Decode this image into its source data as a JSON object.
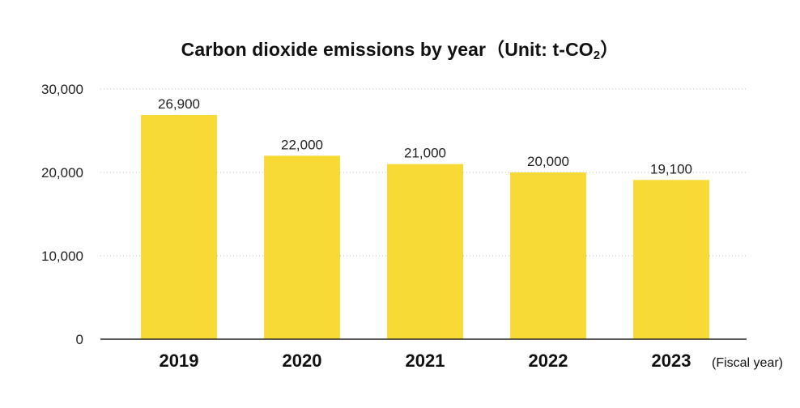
{
  "chart_data": {
    "type": "bar",
    "title_main": "Carbon dioxide emissions by year（Unit: t-CO",
    "title_sub": "2",
    "title_end": "）",
    "categories": [
      "2019",
      "2020",
      "2021",
      "2022",
      "2023"
    ],
    "values": [
      26900,
      22000,
      21000,
      20000,
      19100
    ],
    "value_labels": [
      "26,900",
      "22,000",
      "21,000",
      "20,000",
      "19,100"
    ],
    "y_ticks": [
      0,
      10000,
      20000,
      30000
    ],
    "y_tick_labels": [
      "0",
      "10,000",
      "20,000",
      "30,000"
    ],
    "ylim": [
      0,
      30000
    ],
    "x_unit": "(Fiscal year)",
    "grid": true,
    "grid_style": "dotted",
    "bar_color": "#F8DA36",
    "axis_color": "#222222",
    "grid_color": "#BDBDBD"
  }
}
